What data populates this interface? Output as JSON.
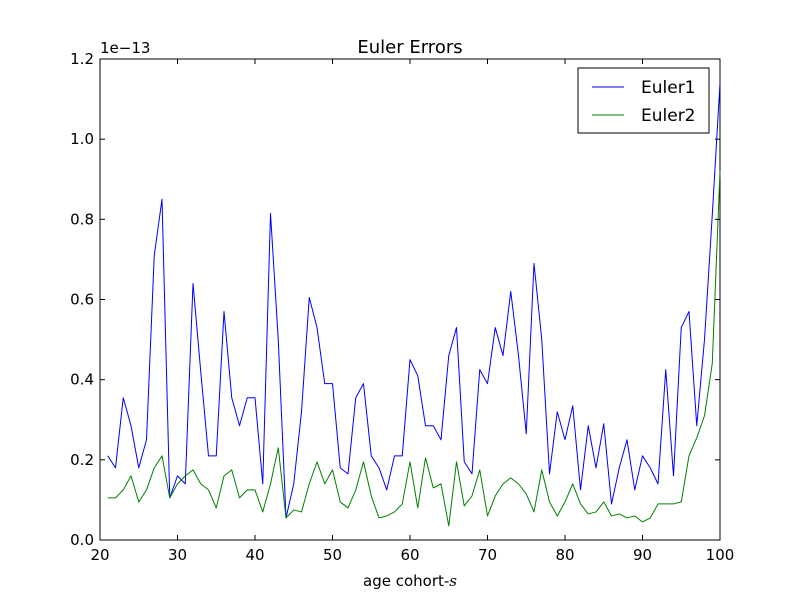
{
  "chart_data": {
    "type": "line",
    "title": "Euler Errors",
    "xlabel": "age cohort-",
    "xlabel_math": "s",
    "ylabel": "",
    "scale_label": "1e−13",
    "xlim": [
      20,
      100
    ],
    "ylim": [
      0,
      1.2
    ],
    "xticks": [
      20,
      30,
      40,
      50,
      60,
      70,
      80,
      90,
      100
    ],
    "yticks": [
      0,
      0.2,
      0.4,
      0.6,
      0.8,
      1.0,
      1.2
    ],
    "xtick_labels": [
      "20",
      "30",
      "40",
      "50",
      "60",
      "70",
      "80",
      "90",
      "100"
    ],
    "ytick_labels": [
      "0.0",
      "0.2",
      "0.4",
      "0.6",
      "0.8",
      "1.0",
      "1.2"
    ],
    "grid": false,
    "legend_position": "top-right",
    "x": [
      21,
      22,
      23,
      24,
      25,
      26,
      27,
      28,
      29,
      30,
      31,
      32,
      33,
      34,
      35,
      36,
      37,
      38,
      39,
      40,
      41,
      42,
      43,
      44,
      45,
      46,
      47,
      48,
      49,
      50,
      51,
      52,
      53,
      54,
      55,
      56,
      57,
      58,
      59,
      60,
      61,
      62,
      63,
      64,
      65,
      66,
      67,
      68,
      69,
      70,
      71,
      72,
      73,
      74,
      75,
      76,
      77,
      78,
      79,
      80,
      81,
      82,
      83,
      84,
      85,
      86,
      87,
      88,
      89,
      90,
      91,
      92,
      93,
      94,
      95,
      96,
      97,
      98,
      99,
      100
    ],
    "series": [
      {
        "name": "Euler1",
        "color": "#0000ff",
        "values": [
          0.21,
          0.18,
          0.355,
          0.285,
          0.18,
          0.25,
          0.71,
          0.85,
          0.105,
          0.16,
          0.14,
          0.64,
          0.42,
          0.21,
          0.21,
          0.57,
          0.355,
          0.285,
          0.355,
          0.355,
          0.14,
          0.815,
          0.5,
          0.055,
          0.14,
          0.32,
          0.605,
          0.53,
          0.39,
          0.39,
          0.18,
          0.165,
          0.355,
          0.39,
          0.21,
          0.18,
          0.125,
          0.21,
          0.21,
          0.45,
          0.41,
          0.285,
          0.285,
          0.25,
          0.46,
          0.53,
          0.195,
          0.165,
          0.425,
          0.39,
          0.53,
          0.46,
          0.62,
          0.46,
          0.265,
          0.69,
          0.5,
          0.165,
          0.32,
          0.25,
          0.335,
          0.125,
          0.285,
          0.18,
          0.29,
          0.09,
          0.18,
          0.25,
          0.125,
          0.21,
          0.18,
          0.14,
          0.425,
          0.16,
          0.53,
          0.57,
          0.285,
          0.5,
          0.81,
          1.14
        ]
      },
      {
        "name": "Euler2",
        "color": "#008000",
        "values": [
          0.105,
          0.105,
          0.125,
          0.16,
          0.095,
          0.125,
          0.18,
          0.21,
          0.105,
          0.14,
          0.16,
          0.175,
          0.14,
          0.125,
          0.08,
          0.16,
          0.175,
          0.105,
          0.125,
          0.125,
          0.07,
          0.14,
          0.23,
          0.055,
          0.075,
          0.07,
          0.14,
          0.195,
          0.14,
          0.175,
          0.095,
          0.08,
          0.125,
          0.195,
          0.11,
          0.055,
          0.06,
          0.07,
          0.09,
          0.195,
          0.08,
          0.205,
          0.13,
          0.14,
          0.035,
          0.195,
          0.085,
          0.11,
          0.175,
          0.06,
          0.11,
          0.14,
          0.155,
          0.14,
          0.115,
          0.07,
          0.175,
          0.095,
          0.06,
          0.095,
          0.14,
          0.09,
          0.065,
          0.07,
          0.095,
          0.06,
          0.065,
          0.055,
          0.06,
          0.045,
          0.055,
          0.09,
          0.09,
          0.09,
          0.095,
          0.21,
          0.255,
          0.31,
          0.44,
          0.92
        ]
      }
    ]
  }
}
